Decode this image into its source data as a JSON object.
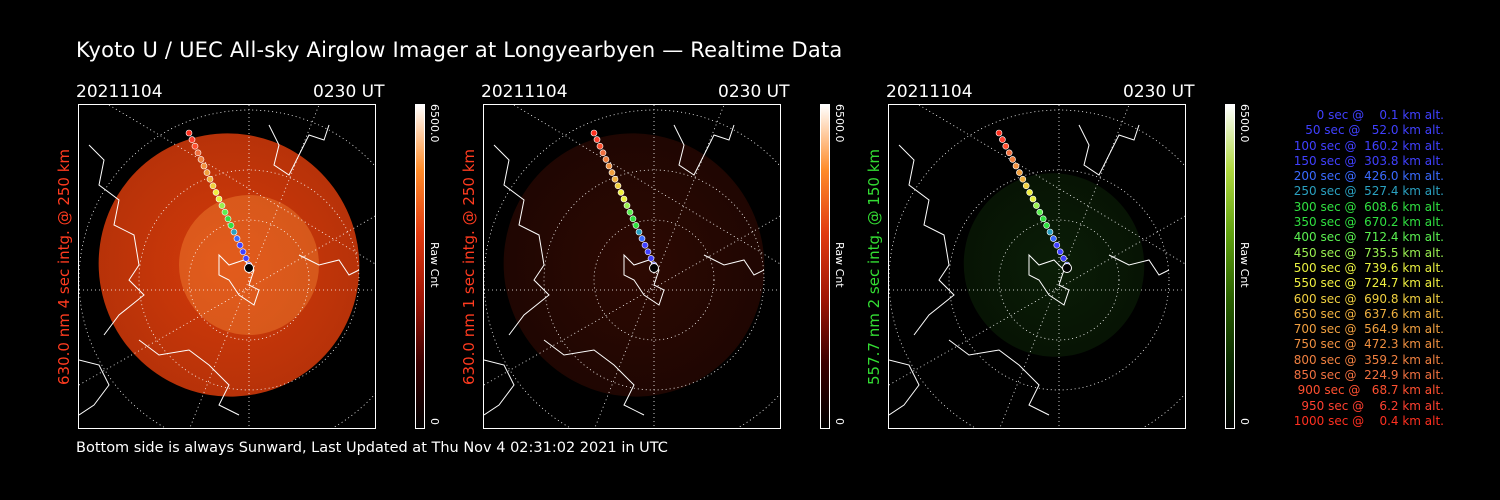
{
  "title": "Kyoto U / UEC All-sky Airglow Imager at Longyearbyen — Realtime Data",
  "footer": "Bottom side is always Sunward, Last Updated at Thu Nov  4 02:31:02 2021 in UTC",
  "panels": [
    {
      "date": "20211104",
      "time": "0230 UT",
      "side_label": "630.0 nm 4 sec intg. @ 250 km",
      "label_color": "#ff3b1f",
      "cbar_max": "6500.0",
      "cbar_min": "0",
      "cbar_unit": "Raw Cnt",
      "cbar_colors": [
        "#ffffff",
        "#ff8c2a",
        "#e03a10",
        "#a01505",
        "#3a0000",
        "#000000"
      ],
      "intensity": 0.85,
      "glow_color": "#d43a0a"
    },
    {
      "date": "20211104",
      "time": "0230 UT",
      "side_label": "630.0 nm 1 sec intg. @ 250 km",
      "label_color": "#ff3b1f",
      "cbar_max": "6500.0",
      "cbar_min": "0",
      "cbar_unit": "Raw Cnt",
      "cbar_colors": [
        "#ffffff",
        "#ff8c2a",
        "#e03a10",
        "#a01505",
        "#3a0000",
        "#000000"
      ],
      "intensity": 0.28,
      "glow_color": "#6a1505"
    },
    {
      "date": "20211104",
      "time": "0230 UT",
      "side_label": "557.7 nm 2 sec intg. @ 150 km",
      "label_color": "#33dd33",
      "cbar_max": "6500.0",
      "cbar_min": "0",
      "cbar_unit": "Raw Cnt",
      "cbar_colors": [
        "#ffffff",
        "#b0d840",
        "#60a010",
        "#2a6000",
        "#0a2a00",
        "#000000"
      ],
      "intensity": 0.25,
      "glow_color": "#1a4a10"
    }
  ],
  "legend": [
    {
      "text": "   0 sec @    0.1 km alt.",
      "color": "#4040ff"
    },
    {
      "text": "  50 sec @   52.0 km alt.",
      "color": "#4040ff"
    },
    {
      "text": " 100 sec @  160.2 km alt.",
      "color": "#4040ff"
    },
    {
      "text": " 150 sec @  303.8 km alt.",
      "color": "#4040ff"
    },
    {
      "text": " 200 sec @  426.0 km alt.",
      "color": "#3a6aff"
    },
    {
      "text": " 250 sec @  527.4 km alt.",
      "color": "#2aa0c0"
    },
    {
      "text": " 300 sec @  608.6 km alt.",
      "color": "#30e040"
    },
    {
      "text": " 350 sec @  670.2 km alt.",
      "color": "#30e040"
    },
    {
      "text": " 400 sec @  712.4 km alt.",
      "color": "#5af050"
    },
    {
      "text": " 450 sec @  735.5 km alt.",
      "color": "#9af050"
    },
    {
      "text": " 500 sec @  739.6 km alt.",
      "color": "#e8f040"
    },
    {
      "text": " 550 sec @  724.7 km alt.",
      "color": "#f0f040"
    },
    {
      "text": " 600 sec @  690.8 km alt.",
      "color": "#f0d040"
    },
    {
      "text": " 650 sec @  637.6 km alt.",
      "color": "#f0b040"
    },
    {
      "text": " 700 sec @  564.9 km alt.",
      "color": "#f0a040"
    },
    {
      "text": " 750 sec @  472.3 km alt.",
      "color": "#f09040"
    },
    {
      "text": " 800 sec @  359.2 km alt.",
      "color": "#f08040"
    },
    {
      "text": " 850 sec @  224.9 km alt.",
      "color": "#f07040"
    },
    {
      "text": " 900 sec @   68.7 km alt.",
      "color": "#ff5030"
    },
    {
      "text": " 950 sec @    6.2 km alt.",
      "color": "#ff4030"
    },
    {
      "text": "1000 sec @    0.4 km alt.",
      "color": "#ff3020"
    }
  ]
}
